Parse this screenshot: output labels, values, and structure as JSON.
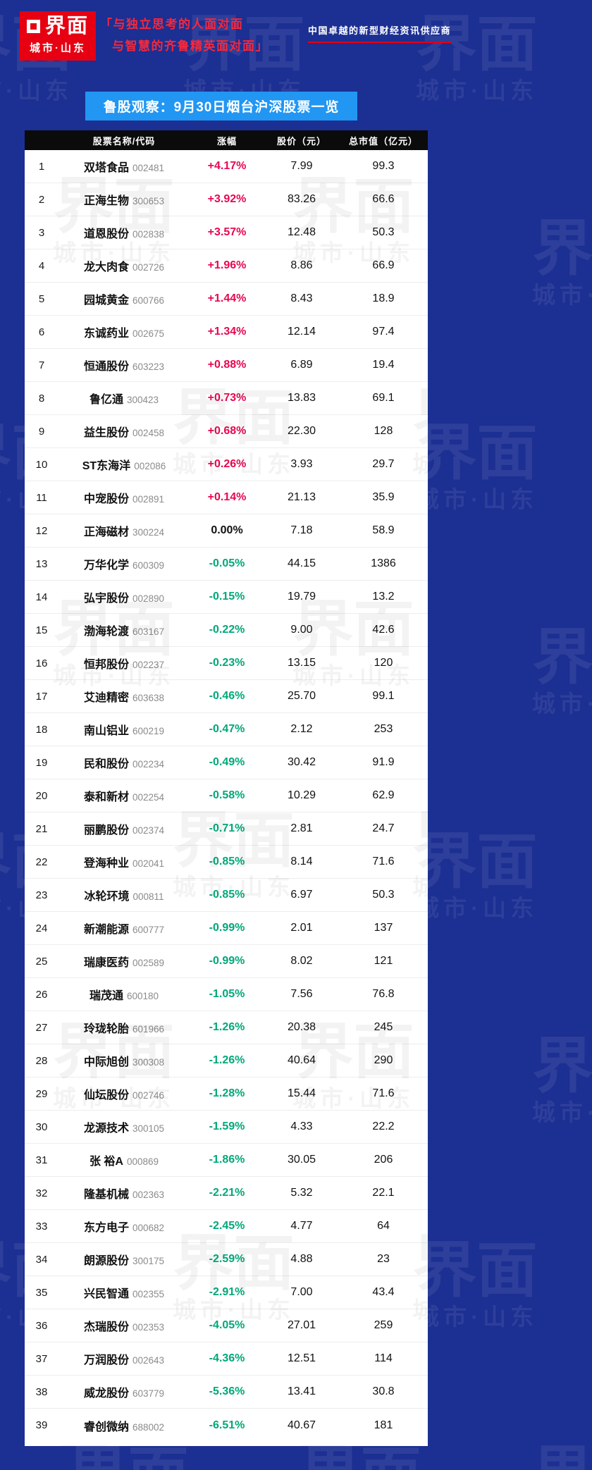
{
  "header": {
    "logo_main": "界面",
    "logo_sub": "城市·山东",
    "slogan_line1": "「与独立思考的人面对面",
    "slogan_line2": "与智慧的齐鲁精英面对面」",
    "tagline": "中国卓越的新型财经资讯供应商"
  },
  "chart_data": {
    "type": "table",
    "title": "鲁股观察：9月30日烟台沪深股票一览",
    "columns": [
      "股票名称/代码",
      "涨幅",
      "股价（元）",
      "总市值（亿元）"
    ],
    "rows": [
      {
        "no": "1",
        "name": "双塔食品",
        "code": "002481",
        "change": "+4.17%",
        "price": "7.99",
        "cap": "99.3"
      },
      {
        "no": "2",
        "name": "正海生物",
        "code": "300653",
        "change": "+3.92%",
        "price": "83.26",
        "cap": "66.6"
      },
      {
        "no": "3",
        "name": "道恩股份",
        "code": "002838",
        "change": "+3.57%",
        "price": "12.48",
        "cap": "50.3"
      },
      {
        "no": "4",
        "name": "龙大肉食",
        "code": "002726",
        "change": "+1.96%",
        "price": "8.86",
        "cap": "66.9"
      },
      {
        "no": "5",
        "name": "园城黄金",
        "code": "600766",
        "change": "+1.44%",
        "price": "8.43",
        "cap": "18.9"
      },
      {
        "no": "6",
        "name": "东诚药业",
        "code": "002675",
        "change": "+1.34%",
        "price": "12.14",
        "cap": "97.4"
      },
      {
        "no": "7",
        "name": "恒通股份",
        "code": "603223",
        "change": "+0.88%",
        "price": "6.89",
        "cap": "19.4"
      },
      {
        "no": "8",
        "name": "鲁亿通",
        "code": "300423",
        "change": "+0.73%",
        "price": "13.83",
        "cap": "69.1"
      },
      {
        "no": "9",
        "name": "益生股份",
        "code": "002458",
        "change": "+0.68%",
        "price": "22.30",
        "cap": "128"
      },
      {
        "no": "10",
        "name": "ST东海洋",
        "code": "002086",
        "change": "+0.26%",
        "price": "3.93",
        "cap": "29.7"
      },
      {
        "no": "11",
        "name": "中宠股份",
        "code": "002891",
        "change": "+0.14%",
        "price": "21.13",
        "cap": "35.9"
      },
      {
        "no": "12",
        "name": "正海磁材",
        "code": "300224",
        "change": "0.00%",
        "price": "7.18",
        "cap": "58.9"
      },
      {
        "no": "13",
        "name": "万华化学",
        "code": "600309",
        "change": "-0.05%",
        "price": "44.15",
        "cap": "1386"
      },
      {
        "no": "14",
        "name": "弘宇股份",
        "code": "002890",
        "change": "-0.15%",
        "price": "19.79",
        "cap": "13.2"
      },
      {
        "no": "15",
        "name": "渤海轮渡",
        "code": "603167",
        "change": "-0.22%",
        "price": "9.00",
        "cap": "42.6"
      },
      {
        "no": "16",
        "name": "恒邦股份",
        "code": "002237",
        "change": "-0.23%",
        "price": "13.15",
        "cap": "120"
      },
      {
        "no": "17",
        "name": "艾迪精密",
        "code": "603638",
        "change": "-0.46%",
        "price": "25.70",
        "cap": "99.1"
      },
      {
        "no": "18",
        "name": "南山铝业",
        "code": "600219",
        "change": "-0.47%",
        "price": "2.12",
        "cap": "253"
      },
      {
        "no": "19",
        "name": "民和股份",
        "code": "002234",
        "change": "-0.49%",
        "price": "30.42",
        "cap": "91.9"
      },
      {
        "no": "20",
        "name": "泰和新材",
        "code": "002254",
        "change": "-0.58%",
        "price": "10.29",
        "cap": "62.9"
      },
      {
        "no": "21",
        "name": "丽鹏股份",
        "code": "002374",
        "change": "-0.71%",
        "price": "2.81",
        "cap": "24.7"
      },
      {
        "no": "22",
        "name": "登海种业",
        "code": "002041",
        "change": "-0.85%",
        "price": "8.14",
        "cap": "71.6"
      },
      {
        "no": "23",
        "name": "冰轮环境",
        "code": "000811",
        "change": "-0.85%",
        "price": "6.97",
        "cap": "50.3"
      },
      {
        "no": "24",
        "name": "新潮能源",
        "code": "600777",
        "change": "-0.99%",
        "price": "2.01",
        "cap": "137"
      },
      {
        "no": "25",
        "name": "瑞康医药",
        "code": "002589",
        "change": "-0.99%",
        "price": "8.02",
        "cap": "121"
      },
      {
        "no": "26",
        "name": "瑞茂通",
        "code": "600180",
        "change": "-1.05%",
        "price": "7.56",
        "cap": "76.8"
      },
      {
        "no": "27",
        "name": "玲珑轮胎",
        "code": "601966",
        "change": "-1.26%",
        "price": "20.38",
        "cap": "245"
      },
      {
        "no": "28",
        "name": "中际旭创",
        "code": "300308",
        "change": "-1.26%",
        "price": "40.64",
        "cap": "290"
      },
      {
        "no": "29",
        "name": "仙坛股份",
        "code": "002746",
        "change": "-1.28%",
        "price": "15.44",
        "cap": "71.6"
      },
      {
        "no": "30",
        "name": "龙源技术",
        "code": "300105",
        "change": "-1.59%",
        "price": "4.33",
        "cap": "22.2"
      },
      {
        "no": "31",
        "name": "张 裕A",
        "code": "000869",
        "change": "-1.86%",
        "price": "30.05",
        "cap": "206"
      },
      {
        "no": "32",
        "name": "隆基机械",
        "code": "002363",
        "change": "-2.21%",
        "price": "5.32",
        "cap": "22.1"
      },
      {
        "no": "33",
        "name": "东方电子",
        "code": "000682",
        "change": "-2.45%",
        "price": "4.77",
        "cap": "64"
      },
      {
        "no": "34",
        "name": "朗源股份",
        "code": "300175",
        "change": "-2.59%",
        "price": "4.88",
        "cap": "23"
      },
      {
        "no": "35",
        "name": "兴民智通",
        "code": "002355",
        "change": "-2.91%",
        "price": "7.00",
        "cap": "43.4"
      },
      {
        "no": "36",
        "name": "杰瑞股份",
        "code": "002353",
        "change": "-4.05%",
        "price": "27.01",
        "cap": "259"
      },
      {
        "no": "37",
        "name": "万润股份",
        "code": "002643",
        "change": "-4.36%",
        "price": "12.51",
        "cap": "114"
      },
      {
        "no": "38",
        "name": "威龙股份",
        "code": "603779",
        "change": "-5.36%",
        "price": "13.41",
        "cap": "30.8"
      },
      {
        "no": "39",
        "name": "睿创微纳",
        "code": "688002",
        "change": "-6.51%",
        "price": "40.67",
        "cap": "181"
      }
    ]
  },
  "colors": {
    "page_bg": "#1c2f92",
    "banner_bg": "#2196f3",
    "header_bg": "#0b0b0b",
    "logo_red": "#e60012",
    "slogan_red": "#f5283c",
    "code_gray": "#8b8b8b",
    "up": "#e8074f",
    "down": "#00a878",
    "flat": "#111111"
  }
}
